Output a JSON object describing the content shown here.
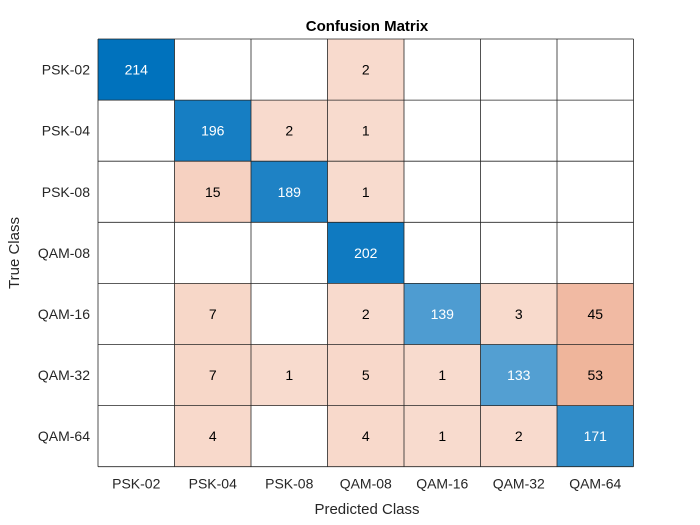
{
  "chart_data": {
    "type": "heatmap",
    "title": "Confusion Matrix",
    "xlabel": "Predicted Class",
    "ylabel": "True Class",
    "x_categories": [
      "PSK-02",
      "PSK-04",
      "PSK-08",
      "QAM-08",
      "QAM-16",
      "QAM-32",
      "QAM-64"
    ],
    "y_categories": [
      "PSK-02",
      "PSK-04",
      "PSK-08",
      "QAM-08",
      "QAM-16",
      "QAM-32",
      "QAM-64"
    ],
    "values": [
      [
        214,
        null,
        null,
        2,
        null,
        null,
        null
      ],
      [
        null,
        196,
        2,
        1,
        null,
        null,
        null
      ],
      [
        null,
        15,
        189,
        1,
        null,
        null,
        null
      ],
      [
        null,
        null,
        null,
        202,
        null,
        null,
        null
      ],
      [
        null,
        7,
        null,
        2,
        139,
        3,
        45
      ],
      [
        null,
        7,
        1,
        5,
        1,
        133,
        53
      ],
      [
        null,
        4,
        null,
        4,
        1,
        2,
        171
      ]
    ],
    "grid": true,
    "legend": "none"
  },
  "colors": {
    "diagonal_strong": "#0072BD",
    "diagonal_light": "#CFE3F2",
    "offdiag_strong": "#D95319",
    "offdiag_light": "#FAE3D9",
    "empty": "#FFFFFF",
    "grid_line": "#262626",
    "text_dark": "#000000",
    "text_light": "#FFFFFF"
  }
}
